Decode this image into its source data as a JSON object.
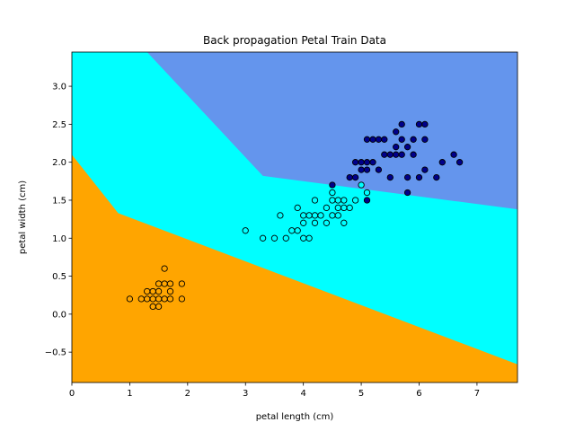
{
  "chart_data": {
    "type": "scatter",
    "title": "Back propagation Petal Train Data",
    "xlabel": "petal length (cm)",
    "ylabel": "petal width (cm)",
    "xlim": [
      0,
      7.7
    ],
    "ylim": [
      -0.9,
      3.45
    ],
    "x_ticks": [
      0,
      1,
      2,
      3,
      4,
      5,
      6,
      7
    ],
    "y_ticks": [
      -0.5,
      0.0,
      0.5,
      1.0,
      1.5,
      2.0,
      2.5,
      3.0
    ],
    "x_tick_labels": [
      "0",
      "1",
      "2",
      "3",
      "4",
      "5",
      "6",
      "7"
    ],
    "y_tick_labels": [
      "−0.5",
      "0.0",
      "0.5",
      "1.0",
      "1.5",
      "2.0",
      "2.5",
      "3.0"
    ],
    "grid": false,
    "decision_regions": [
      {
        "class": 0,
        "color": "#ffa500",
        "boundary": [
          [
            0,
            2.1
          ],
          [
            0.8,
            1.33
          ],
          [
            7.7,
            -0.66
          ]
        ]
      },
      {
        "class": 1,
        "color": "#00ffff"
      },
      {
        "class": 2,
        "color": "#6495ed",
        "boundary": [
          [
            1.3,
            3.45
          ],
          [
            3.3,
            1.82
          ],
          [
            7.7,
            1.38
          ]
        ]
      }
    ],
    "series": [
      {
        "class": 0,
        "color": "#ffa500",
        "points": [
          [
            1.0,
            0.2
          ],
          [
            1.2,
            0.2
          ],
          [
            1.3,
            0.2
          ],
          [
            1.3,
            0.3
          ],
          [
            1.4,
            0.2
          ],
          [
            1.4,
            0.3
          ],
          [
            1.4,
            0.1
          ],
          [
            1.5,
            0.2
          ],
          [
            1.5,
            0.4
          ],
          [
            1.5,
            0.3
          ],
          [
            1.5,
            0.1
          ],
          [
            1.6,
            0.2
          ],
          [
            1.6,
            0.6
          ],
          [
            1.6,
            0.4
          ],
          [
            1.7,
            0.2
          ],
          [
            1.7,
            0.3
          ],
          [
            1.7,
            0.4
          ],
          [
            1.9,
            0.2
          ],
          [
            1.9,
            0.4
          ]
        ]
      },
      {
        "class": 1,
        "color": "#00ffff",
        "points": [
          [
            3.0,
            1.1
          ],
          [
            3.3,
            1.0
          ],
          [
            3.5,
            1.0
          ],
          [
            3.6,
            1.3
          ],
          [
            3.7,
            1.0
          ],
          [
            3.8,
            1.1
          ],
          [
            3.9,
            1.1
          ],
          [
            3.9,
            1.4
          ],
          [
            4.0,
            1.0
          ],
          [
            4.0,
            1.2
          ],
          [
            4.0,
            1.3
          ],
          [
            4.1,
            1.0
          ],
          [
            4.1,
            1.3
          ],
          [
            4.2,
            1.2
          ],
          [
            4.2,
            1.3
          ],
          [
            4.2,
            1.5
          ],
          [
            4.3,
            1.3
          ],
          [
            4.4,
            1.2
          ],
          [
            4.4,
            1.4
          ],
          [
            4.5,
            1.3
          ],
          [
            4.5,
            1.5
          ],
          [
            4.5,
            1.6
          ],
          [
            4.6,
            1.3
          ],
          [
            4.6,
            1.4
          ],
          [
            4.6,
            1.5
          ],
          [
            4.7,
            1.2
          ],
          [
            4.7,
            1.4
          ],
          [
            4.7,
            1.5
          ],
          [
            4.8,
            1.4
          ],
          [
            4.9,
            1.5
          ],
          [
            5.0,
            1.7
          ],
          [
            5.1,
            1.6
          ]
        ]
      },
      {
        "class": 2,
        "color": "#00008b",
        "points": [
          [
            4.5,
            1.7
          ],
          [
            4.8,
            1.8
          ],
          [
            4.9,
            1.8
          ],
          [
            4.9,
            2.0
          ],
          [
            5.0,
            1.9
          ],
          [
            5.0,
            2.0
          ],
          [
            5.1,
            1.5
          ],
          [
            5.1,
            1.9
          ],
          [
            5.1,
            2.0
          ],
          [
            5.1,
            2.3
          ],
          [
            5.2,
            2.0
          ],
          [
            5.2,
            2.3
          ],
          [
            5.3,
            1.9
          ],
          [
            5.3,
            2.3
          ],
          [
            5.4,
            2.1
          ],
          [
            5.4,
            2.3
          ],
          [
            5.5,
            1.8
          ],
          [
            5.5,
            2.1
          ],
          [
            5.6,
            2.1
          ],
          [
            5.6,
            2.2
          ],
          [
            5.6,
            2.4
          ],
          [
            5.7,
            2.1
          ],
          [
            5.7,
            2.3
          ],
          [
            5.7,
            2.5
          ],
          [
            5.8,
            1.6
          ],
          [
            5.8,
            1.8
          ],
          [
            5.8,
            2.2
          ],
          [
            5.9,
            2.1
          ],
          [
            5.9,
            2.3
          ],
          [
            6.0,
            1.8
          ],
          [
            6.0,
            2.5
          ],
          [
            6.1,
            1.9
          ],
          [
            6.1,
            2.3
          ],
          [
            6.1,
            2.5
          ],
          [
            6.4,
            2.0
          ],
          [
            6.6,
            2.1
          ],
          [
            6.7,
            2.0
          ],
          [
            6.3,
            1.8
          ]
        ]
      }
    ]
  }
}
